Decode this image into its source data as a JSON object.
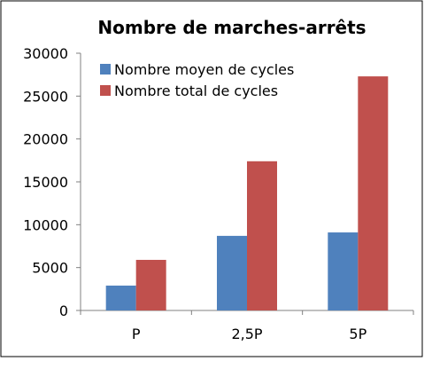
{
  "chart_data": {
    "type": "bar",
    "title": "Nombre de marches-arrêts",
    "xlabel": "",
    "ylabel": "",
    "categories": [
      "P",
      "2,5P",
      "5P"
    ],
    "series": [
      {
        "name": "Nombre moyen de cycles",
        "color": "#4f81bd",
        "values": [
          2900,
          8700,
          9100
        ]
      },
      {
        "name": "Nombre total de cycles",
        "color": "#c0504d",
        "values": [
          5900,
          17400,
          27300
        ]
      }
    ],
    "ylim": [
      0,
      30000
    ],
    "yticks": [
      0,
      5000,
      10000,
      15000,
      20000,
      25000,
      30000
    ],
    "grid": false,
    "legend_position": "top-left"
  }
}
